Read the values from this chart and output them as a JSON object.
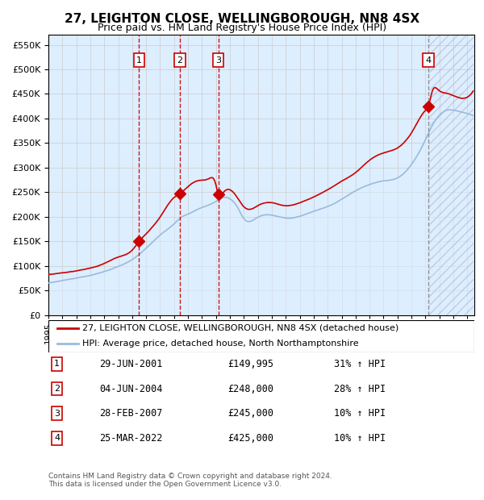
{
  "title": "27, LEIGHTON CLOSE, WELLINGBOROUGH, NN8 4SX",
  "subtitle": "Price paid vs. HM Land Registry's House Price Index (HPI)",
  "legend_label_red": "27, LEIGHTON CLOSE, WELLINGBOROUGH, NN8 4SX (detached house)",
  "legend_label_blue": "HPI: Average price, detached house, North Northamptonshire",
  "footnote1": "Contains HM Land Registry data © Crown copyright and database right 2024.",
  "footnote2": "This data is licensed under the Open Government Licence v3.0.",
  "transactions": [
    {
      "num": 1,
      "date": "29-JUN-2001",
      "price": 149995,
      "change": "31% ↑ HPI"
    },
    {
      "num": 2,
      "date": "04-JUN-2004",
      "price": 248000,
      "change": "28% ↑ HPI"
    },
    {
      "num": 3,
      "date": "28-FEB-2007",
      "price": 245000,
      "change": "10% ↑ HPI"
    },
    {
      "num": 4,
      "date": "25-MAR-2022",
      "price": 425000,
      "change": "10% ↑ HPI"
    }
  ],
  "transaction_dates_decimal": [
    2001.493,
    2004.421,
    2007.162,
    2022.228
  ],
  "transaction_prices": [
    149995,
    248000,
    245000,
    425000
  ],
  "vline_color": "#cc0000",
  "vline4_color": "#888888",
  "red_line_color": "#cc0000",
  "blue_line_color": "#99bbdd",
  "marker_color": "#cc0000",
  "bg_color": "#ddeeff",
  "hatch_color": "#ccccdd",
  "ylim": [
    0,
    570000
  ],
  "yticks": [
    0,
    50000,
    100000,
    150000,
    200000,
    250000,
    300000,
    350000,
    400000,
    450000,
    500000,
    550000
  ],
  "xlim_start": 1995.0,
  "xlim_end": 2025.5
}
